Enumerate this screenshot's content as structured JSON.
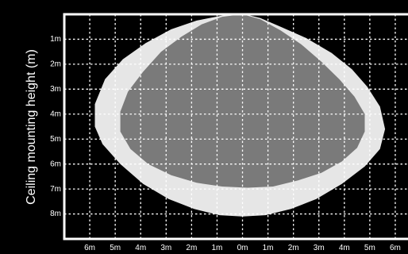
{
  "chart_data": {
    "type": "area",
    "title": "",
    "xlabel": "",
    "ylabel": "Ceiling mounting height (m)",
    "x_tick_labels": [
      "6m",
      "5m",
      "4m",
      "3m",
      "2m",
      "1m",
      "0m",
      "1m",
      "2m",
      "3m",
      "4m",
      "5m",
      "6m"
    ],
    "y_tick_labels": [
      "1m",
      "2m",
      "3m",
      "4m",
      "5m",
      "6m",
      "7m",
      "8m"
    ],
    "xlim": [
      -7,
      6.5
    ],
    "ylim": [
      0,
      9
    ],
    "grid": true,
    "colors": {
      "background": "#000000",
      "outer": "#e6e6e6",
      "inner": "#7a7a7a",
      "grid": "#ffffff",
      "text": "#ffffff"
    },
    "series": [
      {
        "fill": "outer",
        "x": [
          0.1,
          0.7,
          1.5,
          2.5,
          3.5,
          4.3,
          4.9,
          5.4,
          5.6,
          5.4,
          4.8,
          3.9,
          2.9,
          1.9,
          0.9,
          0.0,
          -0.9,
          -1.9,
          -2.9,
          -3.9,
          -4.8,
          -5.5,
          -5.8,
          -5.8,
          -5.4,
          -4.7,
          -3.8,
          -2.8,
          -1.8,
          -0.8
        ],
        "y": [
          0.0,
          0.15,
          0.5,
          0.95,
          1.55,
          2.2,
          2.9,
          3.7,
          4.6,
          5.4,
          6.1,
          6.8,
          7.4,
          7.8,
          8.05,
          8.1,
          8.05,
          7.8,
          7.4,
          6.8,
          6.0,
          5.2,
          4.5,
          3.6,
          2.6,
          1.8,
          1.15,
          0.6,
          0.25,
          0.05
        ]
      },
      {
        "fill": "inner",
        "x": [
          0.0,
          0.7,
          1.5,
          2.3,
          3.1,
          3.8,
          4.4,
          4.8,
          4.8,
          4.5,
          3.9,
          3.1,
          2.2,
          1.2,
          0.2,
          -0.8,
          -1.8,
          -2.8,
          -3.7,
          -4.4,
          -4.8,
          -4.8,
          -4.5,
          -3.9,
          -3.2,
          -2.4,
          -1.6,
          -0.8
        ],
        "y": [
          0.0,
          0.2,
          0.65,
          1.2,
          1.9,
          2.6,
          3.3,
          4.0,
          4.7,
          5.35,
          5.9,
          6.35,
          6.65,
          6.9,
          6.95,
          6.9,
          6.75,
          6.45,
          6.0,
          5.4,
          4.7,
          3.9,
          3.1,
          2.3,
          1.5,
          0.9,
          0.4,
          0.1
        ]
      }
    ]
  }
}
